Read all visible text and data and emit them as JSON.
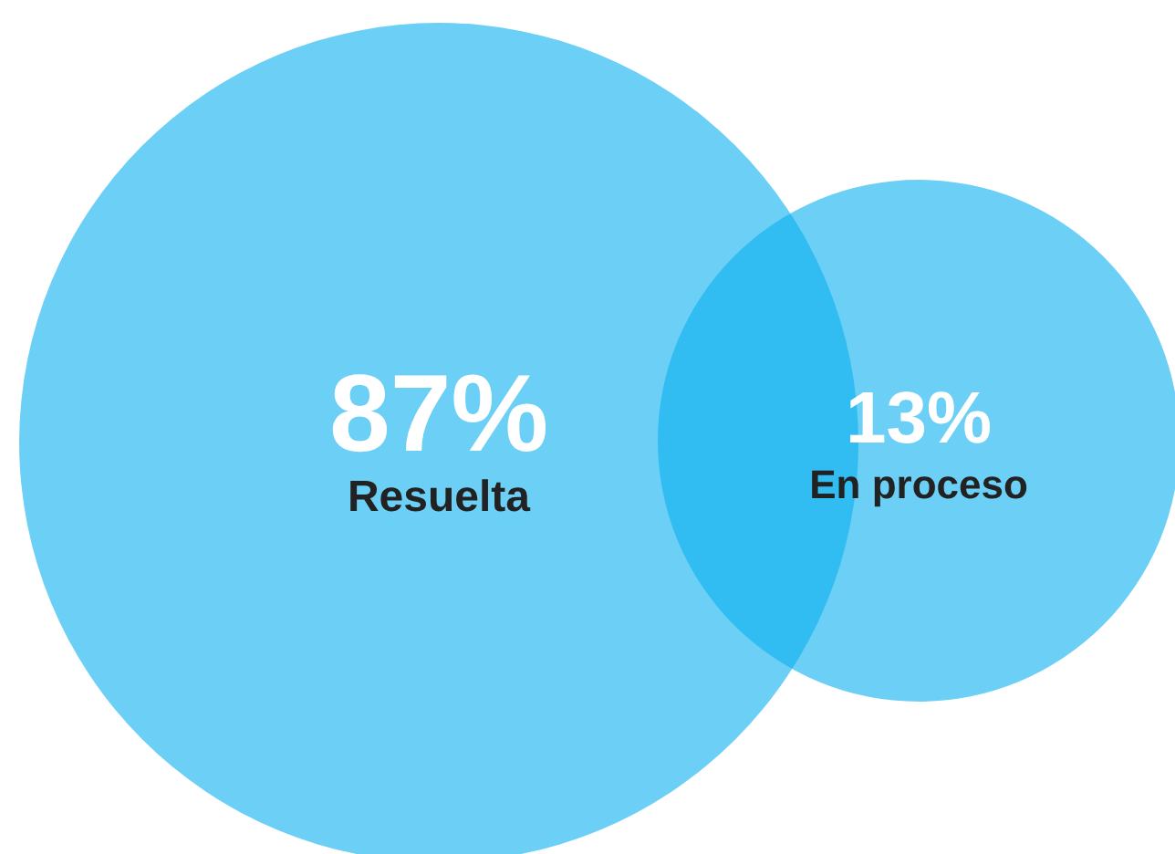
{
  "chart_data": {
    "type": "other",
    "categories": [
      "Resuelta",
      "En proceso"
    ],
    "values": [
      87,
      13
    ],
    "value_labels": [
      "87%",
      "13%"
    ],
    "colors": [
      "#0aaff0",
      "#0aaff0"
    ]
  }
}
